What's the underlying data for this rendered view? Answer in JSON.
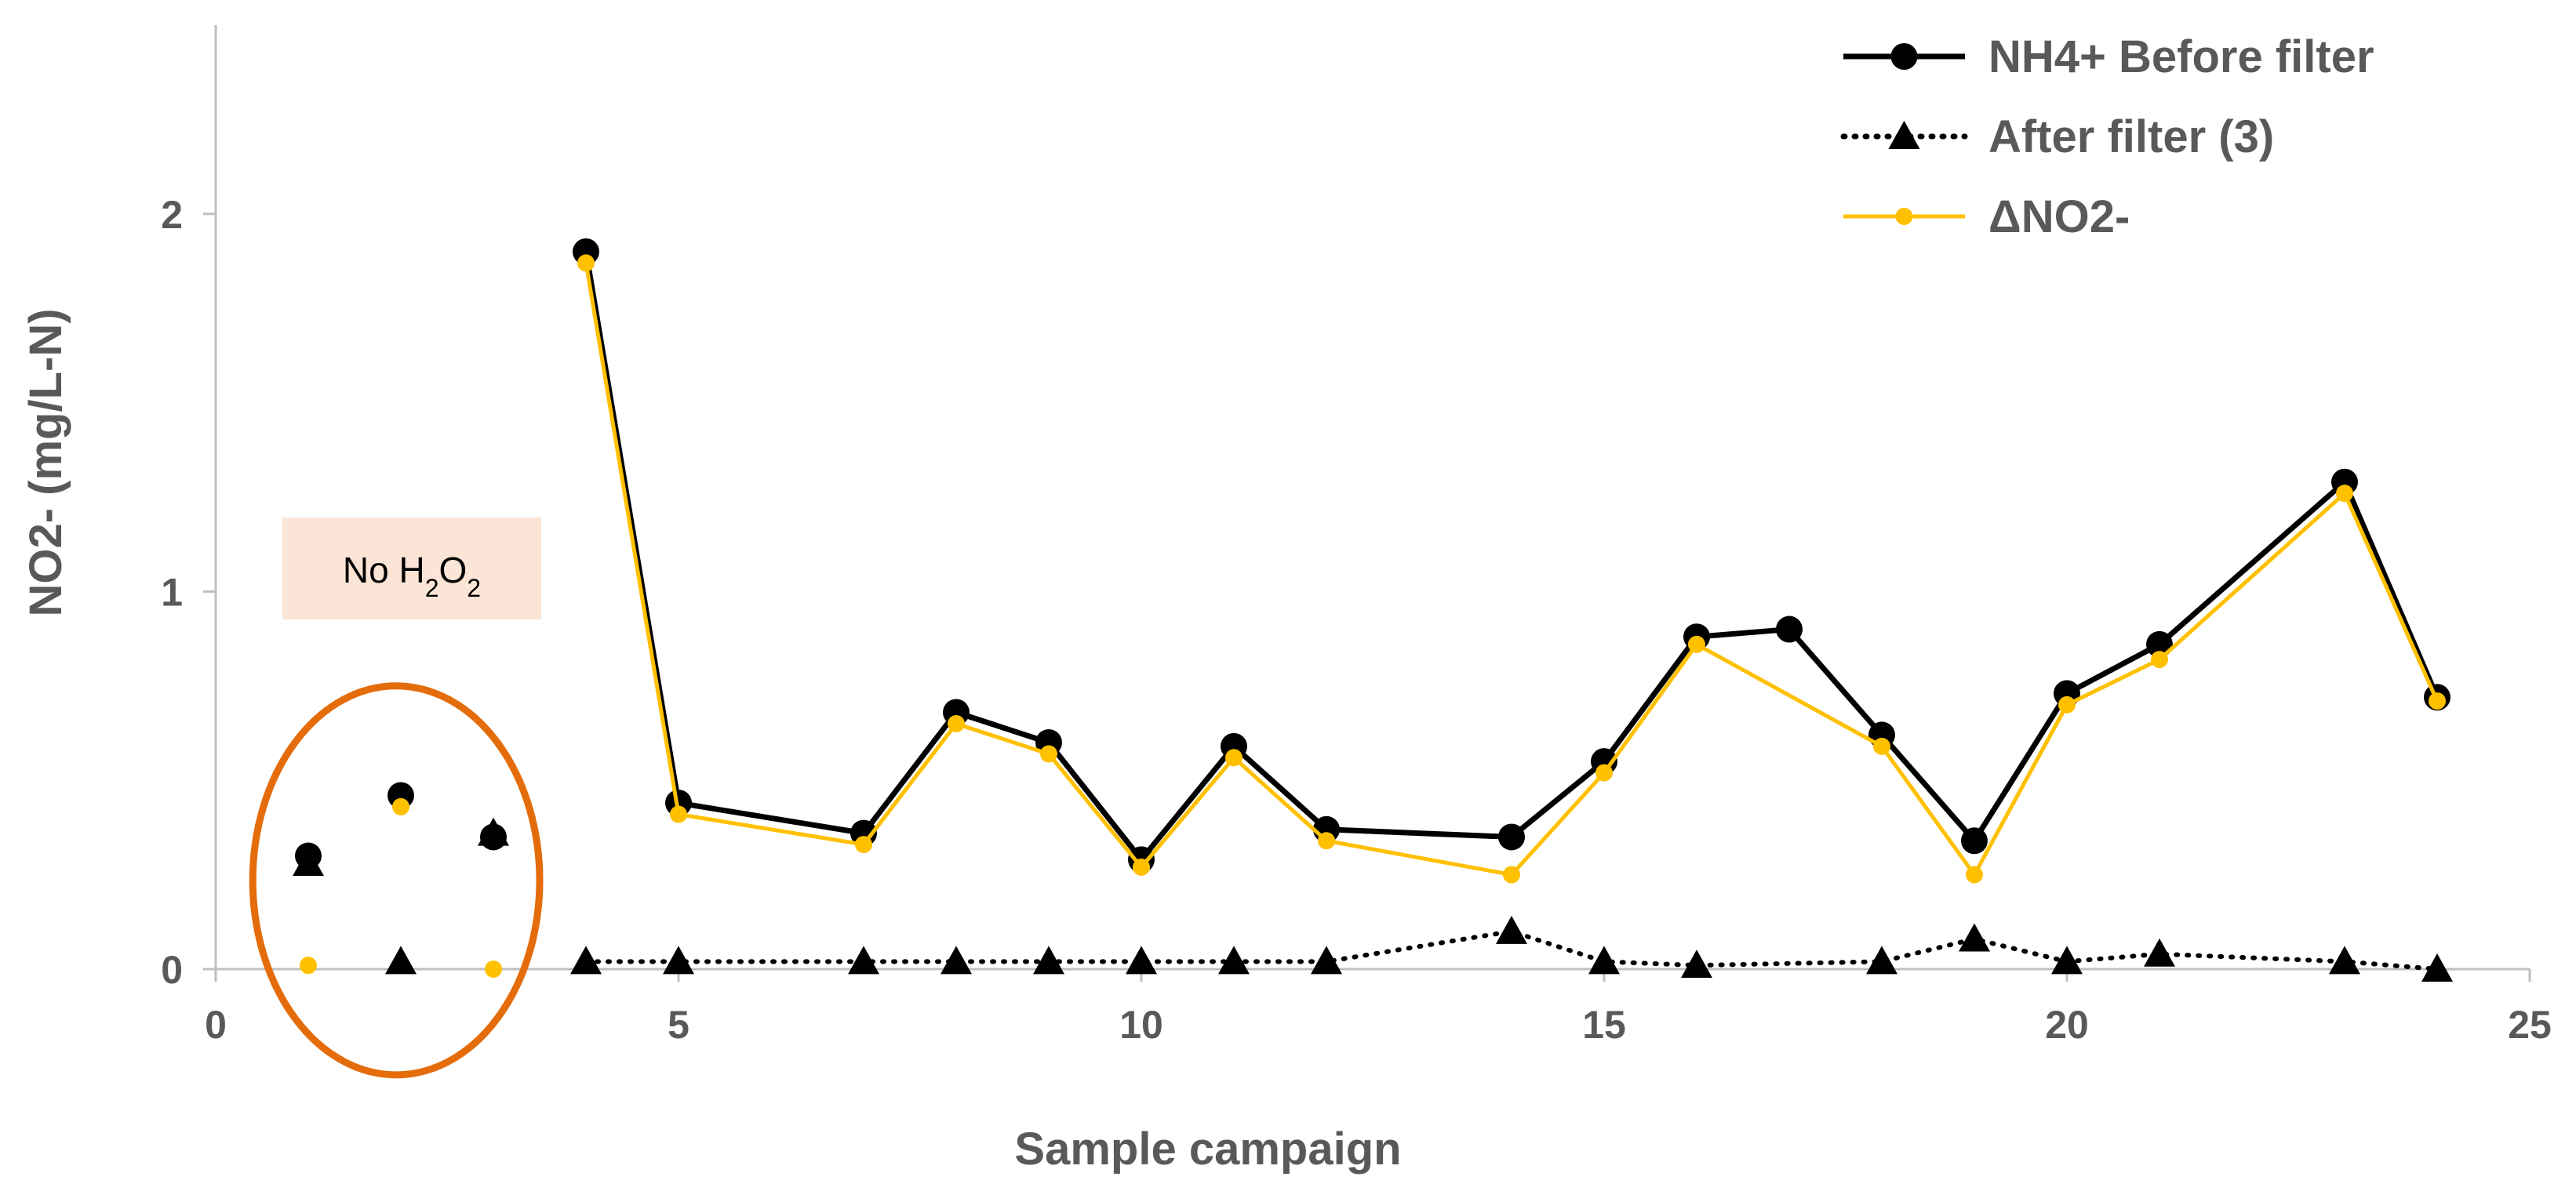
{
  "chart_data": {
    "type": "line",
    "title": "",
    "xlabel": "Sample campaign",
    "ylabel": "NO2- (mg/L-N)",
    "xlim": [
      0,
      25
    ],
    "ylim": [
      0,
      2.5
    ],
    "x_ticks": [
      0,
      5,
      10,
      15,
      20,
      25
    ],
    "y_ticks": [
      0,
      1,
      2
    ],
    "grid": false,
    "legend_position": "top-right",
    "series": [
      {
        "name": "NH4+ Before filter",
        "color": "#000000",
        "line_style": "solid",
        "marker": "circle",
        "points": [
          {
            "x": 1,
            "y": 0.3,
            "connected": false
          },
          {
            "x": 2,
            "y": 0.46,
            "connected": false
          },
          {
            "x": 3,
            "y": 0.35,
            "connected": false
          },
          {
            "x": 4,
            "y": 1.9
          },
          {
            "x": 5,
            "y": 0.44
          },
          {
            "x": 7,
            "y": 0.36
          },
          {
            "x": 8,
            "y": 0.68
          },
          {
            "x": 9,
            "y": 0.6
          },
          {
            "x": 10,
            "y": 0.29
          },
          {
            "x": 11,
            "y": 0.59
          },
          {
            "x": 12,
            "y": 0.37
          },
          {
            "x": 14,
            "y": 0.35
          },
          {
            "x": 15,
            "y": 0.55
          },
          {
            "x": 16,
            "y": 0.88
          },
          {
            "x": 17,
            "y": 0.9
          },
          {
            "x": 18,
            "y": 0.62
          },
          {
            "x": 19,
            "y": 0.34
          },
          {
            "x": 20,
            "y": 0.73
          },
          {
            "x": 21,
            "y": 0.86
          },
          {
            "x": 23,
            "y": 1.29
          },
          {
            "x": 24,
            "y": 0.72
          }
        ]
      },
      {
        "name": "After filter (3)",
        "color": "#000000",
        "line_style": "dotted",
        "marker": "triangle",
        "points": [
          {
            "x": 1,
            "y": 0.28,
            "connected": false
          },
          {
            "x": 2,
            "y": 0.02,
            "connected": false
          },
          {
            "x": 3,
            "y": 0.36,
            "connected": false
          },
          {
            "x": 4,
            "y": 0.02
          },
          {
            "x": 5,
            "y": 0.02
          },
          {
            "x": 7,
            "y": 0.02
          },
          {
            "x": 8,
            "y": 0.02
          },
          {
            "x": 9,
            "y": 0.02
          },
          {
            "x": 10,
            "y": 0.02
          },
          {
            "x": 11,
            "y": 0.02
          },
          {
            "x": 12,
            "y": 0.02
          },
          {
            "x": 14,
            "y": 0.1
          },
          {
            "x": 15,
            "y": 0.02
          },
          {
            "x": 16,
            "y": 0.01
          },
          {
            "x": 18,
            "y": 0.02
          },
          {
            "x": 19,
            "y": 0.08
          },
          {
            "x": 20,
            "y": 0.02
          },
          {
            "x": 21,
            "y": 0.04
          },
          {
            "x": 23,
            "y": 0.02
          },
          {
            "x": 24,
            "y": 0.0
          }
        ]
      },
      {
        "name": "ΔNO2-",
        "color": "#FFC000",
        "line_style": "solid",
        "marker": "circle-small",
        "points": [
          {
            "x": 1,
            "y": 0.01,
            "connected": false
          },
          {
            "x": 2,
            "y": 0.43,
            "connected": false
          },
          {
            "x": 3,
            "y": 0.0,
            "connected": false
          },
          {
            "x": 4,
            "y": 1.87
          },
          {
            "x": 5,
            "y": 0.41
          },
          {
            "x": 7,
            "y": 0.33
          },
          {
            "x": 8,
            "y": 0.65
          },
          {
            "x": 9,
            "y": 0.57
          },
          {
            "x": 10,
            "y": 0.27
          },
          {
            "x": 11,
            "y": 0.56
          },
          {
            "x": 12,
            "y": 0.34
          },
          {
            "x": 14,
            "y": 0.25
          },
          {
            "x": 15,
            "y": 0.52
          },
          {
            "x": 16,
            "y": 0.86
          },
          {
            "x": 18,
            "y": 0.59
          },
          {
            "x": 19,
            "y": 0.25
          },
          {
            "x": 20,
            "y": 0.7
          },
          {
            "x": 21,
            "y": 0.82
          },
          {
            "x": 23,
            "y": 1.26
          },
          {
            "x": 24,
            "y": 0.71
          }
        ]
      }
    ],
    "annotations": [
      {
        "type": "label-box",
        "text": "No H",
        "sub1": "2",
        "mid": "O",
        "sub2": "2",
        "fill": "#FBE5D6"
      },
      {
        "type": "ellipse",
        "stroke": "#E46C0A",
        "x_range": [
          0.4,
          3.5
        ],
        "y_range": [
          -0.28,
          0.75
        ]
      }
    ]
  }
}
